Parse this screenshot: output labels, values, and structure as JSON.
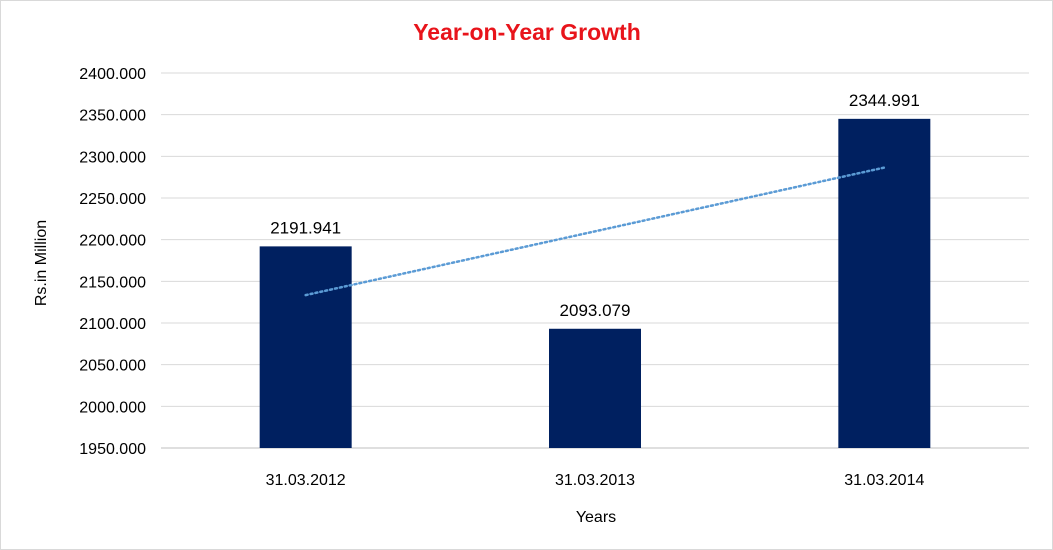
{
  "chart_data": {
    "type": "bar",
    "title": "Year-on-Year Growth",
    "xlabel": "Years",
    "ylabel": "Rs.in Million",
    "categories": [
      "31.03.2012",
      "31.03.2013",
      "31.03.2014"
    ],
    "values": [
      2191.941,
      2093.079,
      2344.991
    ],
    "data_labels": [
      "2191.941",
      "2093.079",
      "2344.991"
    ],
    "ylim": [
      1950,
      2400
    ],
    "yticks": [
      1950,
      2000,
      2050,
      2100,
      2150,
      2200,
      2250,
      2300,
      2350,
      2400
    ],
    "ytick_labels": [
      "1950.000",
      "2000.000",
      "2050.000",
      "2100.000",
      "2150.000",
      "2200.000",
      "2250.000",
      "2300.000",
      "2350.000",
      "2400.000"
    ],
    "grid": true,
    "legend": "none",
    "trendline": {
      "type": "linear",
      "style": "dotted",
      "color": "#5b9bd5"
    },
    "colors": {
      "bar": "#002060",
      "title": "#e8141b",
      "grid": "#d9d9d9"
    }
  }
}
